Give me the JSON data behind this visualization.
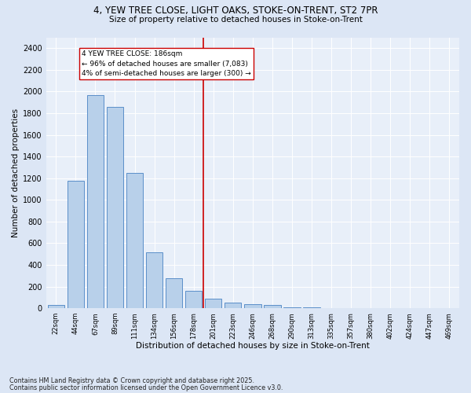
{
  "title_line1": "4, YEW TREE CLOSE, LIGHT OAKS, STOKE-ON-TRENT, ST2 7PR",
  "title_line2": "Size of property relative to detached houses in Stoke-on-Trent",
  "xlabel": "Distribution of detached houses by size in Stoke-on-Trent",
  "ylabel": "Number of detached properties",
  "categories": [
    "22sqm",
    "44sqm",
    "67sqm",
    "89sqm",
    "111sqm",
    "134sqm",
    "156sqm",
    "178sqm",
    "201sqm",
    "223sqm",
    "246sqm",
    "268sqm",
    "290sqm",
    "313sqm",
    "335sqm",
    "357sqm",
    "380sqm",
    "402sqm",
    "424sqm",
    "447sqm",
    "469sqm"
  ],
  "values": [
    30,
    1175,
    1970,
    1855,
    1245,
    515,
    275,
    158,
    90,
    50,
    35,
    30,
    10,
    5,
    3,
    2,
    2,
    1,
    1,
    1,
    1
  ],
  "bar_color": "#b8d0ea",
  "bar_edge_color": "#5b8fc9",
  "vline_x": 7.5,
  "vline_color": "#cc0000",
  "annotation_text": "4 YEW TREE CLOSE: 186sqm\n← 96% of detached houses are smaller (7,083)\n4% of semi-detached houses are larger (300) →",
  "annotation_box_color": "#ffffff",
  "annotation_box_edge_color": "#cc0000",
  "ylim": [
    0,
    2500
  ],
  "yticks": [
    0,
    200,
    400,
    600,
    800,
    1000,
    1200,
    1400,
    1600,
    1800,
    2000,
    2200,
    2400
  ],
  "bg_color": "#dce6f5",
  "plot_bg_color": "#e8eff9",
  "footer_line1": "Contains HM Land Registry data © Crown copyright and database right 2025.",
  "footer_line2": "Contains public sector information licensed under the Open Government Licence v3.0."
}
